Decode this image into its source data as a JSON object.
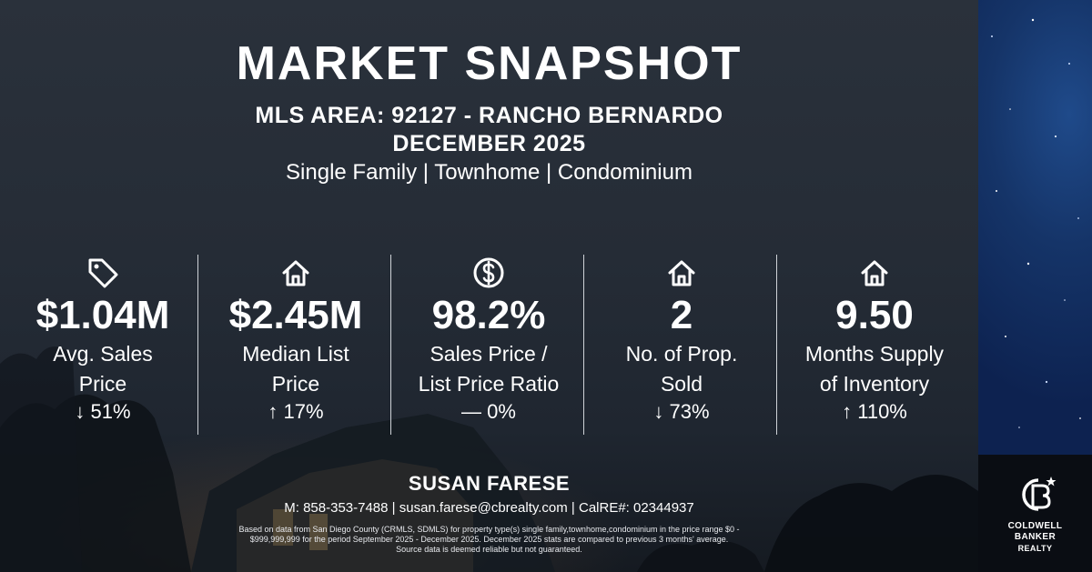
{
  "header": {
    "title": "MARKET SNAPSHOT",
    "area": "MLS AREA: 92127 - RANCHO BERNARDO",
    "period": "DECEMBER 2025",
    "property_types": "Single Family | Townhome | Condominium"
  },
  "stats": [
    {
      "icon": "price-tag-icon",
      "value": "$1.04M",
      "label_line1": "Avg. Sales",
      "label_line2": "Price",
      "change": "↓ 51%"
    },
    {
      "icon": "house-icon",
      "value": "$2.45M",
      "label_line1": "Median List",
      "label_line2": "Price",
      "change": "↑ 17%"
    },
    {
      "icon": "dollar-circle-icon",
      "value": "98.2%",
      "label_line1": "Sales Price /",
      "label_line2": "List Price Ratio",
      "change": "— 0%"
    },
    {
      "icon": "house-icon",
      "value": "2",
      "label_line1": "No. of Prop.",
      "label_line2": "Sold",
      "change": "↓ 73%"
    },
    {
      "icon": "house-icon",
      "value": "9.50",
      "label_line1": "Months Supply",
      "label_line2": "of Inventory",
      "change": "↑ 110%"
    }
  ],
  "agent": {
    "name": "SUSAN FARESE",
    "contact": "M: 858-353-7488 | susan.farese@cbrealty.com | CalRE#: 02344937"
  },
  "disclaimer": {
    "line1": "Based on data from San Diego County (CRMLS, SDMLS) for property type(s) single family,townhome,condominium in the price range $0 -",
    "line2": "$999,999,999 for the period September 2025 - December 2025. December 2025 stats are compared to previous 3 months' average.",
    "line3": "Source data is deemed reliable but not guaranteed."
  },
  "brand": {
    "line1": "COLDWELL",
    "line2": "BANKER",
    "line3": "REALTY",
    "accent_color": "#153468"
  }
}
